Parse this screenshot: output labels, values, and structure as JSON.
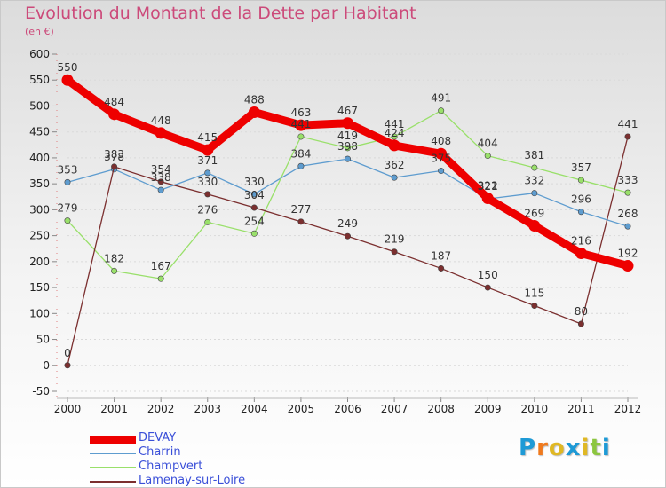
{
  "title": "Evolution du Montant de la Dette par Habitant",
  "subtitle": "(en €)",
  "logo": {
    "text": "Proxiti",
    "letter_colors": [
      "#1e9ad6",
      "#f07a1e",
      "#e0b824",
      "#1e9ad6",
      "#e0b824",
      "#8cc63f",
      "#1e9ad6"
    ]
  },
  "colors": {
    "axis_text": "#222222",
    "grid": "#d9d9d9",
    "legend_text": "#3a4fd8",
    "title": "#cc4a7a"
  },
  "chart_data": {
    "type": "line",
    "title": "Evolution du Montant de la Dette par Habitant",
    "subtitle": "(en €)",
    "xlabel": "",
    "ylabel": "",
    "x": [
      "2000",
      "2001",
      "2002",
      "2003",
      "2004",
      "2005",
      "2006",
      "2007",
      "2008",
      "2009",
      "2010",
      "2011",
      "2012"
    ],
    "ylim": [
      -50,
      600
    ],
    "yticks": [
      -50,
      0,
      50,
      100,
      150,
      200,
      250,
      300,
      350,
      400,
      450,
      500,
      550,
      600
    ],
    "grid": "horizontal",
    "legend_position": "bottom-left",
    "series": [
      {
        "name": "DEVAY",
        "color": "#ee0000",
        "emphasis": true,
        "values": [
          550,
          484,
          448,
          415,
          488,
          463,
          467,
          424,
          408,
          322,
          269,
          216,
          192
        ]
      },
      {
        "name": "Charrin",
        "color": "#5e9ccf",
        "emphasis": false,
        "values": [
          353,
          378,
          338,
          371,
          330,
          384,
          398,
          362,
          375,
          321,
          332,
          296,
          268
        ]
      },
      {
        "name": "Champvert",
        "color": "#99e06a",
        "emphasis": false,
        "values": [
          279,
          182,
          167,
          276,
          254,
          441,
          419,
          441,
          491,
          404,
          381,
          357,
          333
        ]
      },
      {
        "name": "Lamenay-sur-Loire",
        "color": "#7b2f2f",
        "emphasis": false,
        "values": [
          0,
          383,
          354,
          330,
          304,
          277,
          249,
          219,
          187,
          150,
          115,
          80,
          441
        ]
      }
    ]
  }
}
